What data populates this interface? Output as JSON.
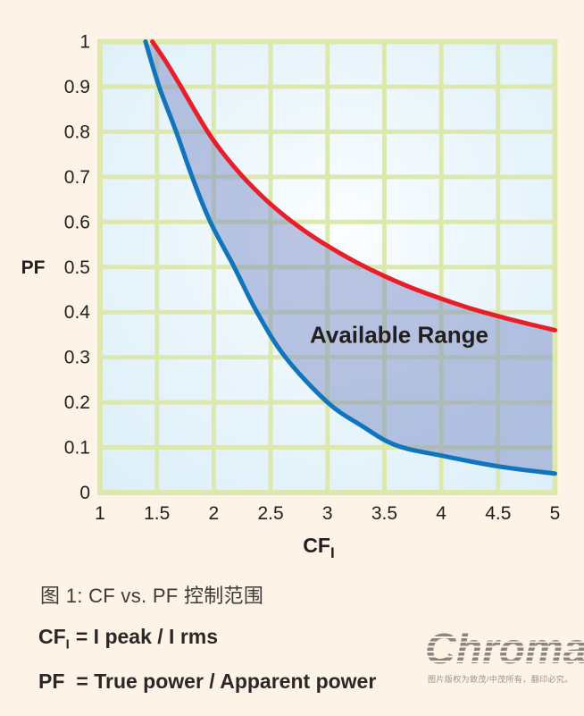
{
  "page": {
    "background": "#fdf3e6"
  },
  "chart_data": {
    "type": "area",
    "title": "",
    "xlabel": "CF",
    "xlabel_sub": "I",
    "ylabel": "PF",
    "xlim": [
      1,
      5
    ],
    "ylim": [
      0,
      1
    ],
    "grid": true,
    "grid_color": "#dde8af",
    "plot_bg": [
      "#fbfeff",
      "#e9f5fb",
      "#dbeef8"
    ],
    "x_ticks": {
      "values": [
        1,
        1.5,
        2,
        2.5,
        3,
        3.5,
        4,
        4.5,
        5
      ],
      "labels": [
        "1",
        "1.5",
        "2",
        "2.5",
        "3",
        "3.5",
        "4",
        "4.5",
        "5"
      ]
    },
    "y_ticks": {
      "values": [
        0,
        0.1,
        0.2,
        0.3,
        0.4,
        0.5,
        0.6,
        0.7,
        0.8,
        0.9,
        1
      ],
      "labels": [
        "0",
        "0.1",
        "0.2",
        "0.3",
        "0.4",
        "0.5",
        "0.6",
        "0.7",
        "0.8",
        "0.9",
        "1"
      ]
    },
    "annotation": {
      "text": "Available Range",
      "x": 3.63,
      "y": 0.35
    },
    "series": [
      {
        "name": "upper-limit",
        "color": "#e81f2a",
        "points": [
          [
            1.46,
            1.0
          ],
          [
            1.58,
            0.955
          ],
          [
            1.7,
            0.905
          ],
          [
            1.85,
            0.84
          ],
          [
            2.0,
            0.78
          ],
          [
            2.2,
            0.716
          ],
          [
            2.4,
            0.663
          ],
          [
            2.6,
            0.618
          ],
          [
            2.8,
            0.58
          ],
          [
            3.0,
            0.547
          ],
          [
            3.25,
            0.511
          ],
          [
            3.5,
            0.48
          ],
          [
            3.75,
            0.453
          ],
          [
            4.0,
            0.43
          ],
          [
            4.25,
            0.409
          ],
          [
            4.5,
            0.391
          ],
          [
            4.75,
            0.375
          ],
          [
            5.0,
            0.36
          ]
        ]
      },
      {
        "name": "lower-limit",
        "color": "#1075bc",
        "points": [
          [
            1.4,
            1.0
          ],
          [
            1.52,
            0.9
          ],
          [
            1.67,
            0.8
          ],
          [
            1.81,
            0.7
          ],
          [
            1.97,
            0.6
          ],
          [
            2.18,
            0.5
          ],
          [
            2.38,
            0.4
          ],
          [
            2.63,
            0.3
          ],
          [
            3.0,
            0.2
          ],
          [
            3.3,
            0.148
          ],
          [
            3.6,
            0.105
          ],
          [
            4.0,
            0.082
          ],
          [
            4.5,
            0.058
          ],
          [
            5.0,
            0.042
          ]
        ]
      }
    ],
    "fill_between": {
      "series": [
        "upper-limit",
        "lower-limit"
      ],
      "color": "rgba(124,140,198,0.5)",
      "label": "Available Range"
    }
  },
  "caption": {
    "text": "图 1: CF vs. PF 控制范围"
  },
  "formulas": {
    "cf": {
      "base": "CF",
      "sub": "I",
      "rest": "= I peak / I rms"
    },
    "pf": {
      "base": "PF",
      "rest": "= True power / Apparent power"
    }
  },
  "logo": {
    "text": "Chroma",
    "color": "#8b8680",
    "copyright": "图片版权为致茂/中茂所有，翻印必究。"
  }
}
